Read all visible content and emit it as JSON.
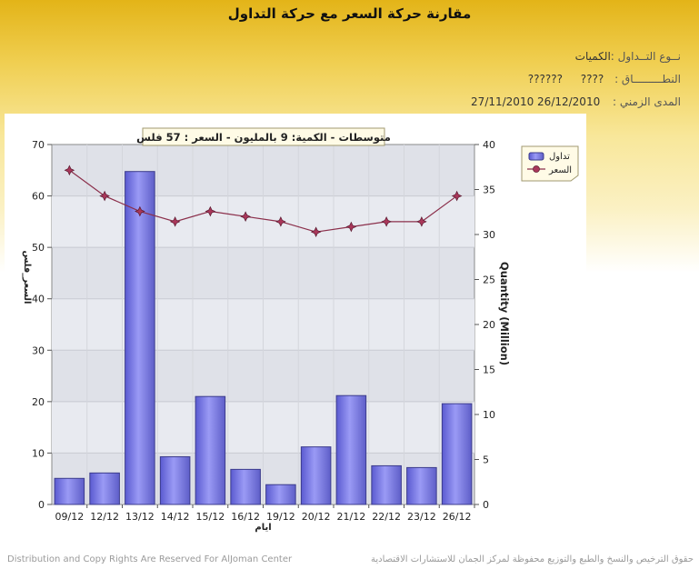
{
  "page": {
    "title": "مقارنة حركة السعر مع حركة التداول",
    "trade_type_label": "نــوع التــداول :",
    "trade_type_value": "الكميات",
    "sector_label": "النطـــــــــاق :",
    "sector_value1": "????",
    "sector_value2": "??????",
    "period_label": "المدى الزمني :",
    "period_value": "26/12/2010 27/11/2010",
    "footer_left": "Distribution and Copy Rights Are Reserved For AlJoman Center",
    "footer_right": "حقوق الترخيص والنسخ والطبع والتوزيع محفوظة لمركز الجمان للاستشارات الاقتصادية"
  },
  "colors": {
    "bar_fill": "#7b7bea",
    "bar_stroke": "#3c3c8c",
    "line": "#8b2f4b",
    "marker": "#a9375a",
    "plot_bg": "#dfe1e8"
  },
  "chart_data": {
    "type": "bar",
    "title": "متوسطات - الكمية: 9 بالمليون  - السعر : 57 فلس",
    "xlabel": "ايام",
    "ylabel_left": "السعر_فلس",
    "ylabel_right": "Quantity (Million)",
    "categories": [
      "09/12",
      "12/12",
      "13/12",
      "14/12",
      "15/12",
      "16/12",
      "19/12",
      "20/12",
      "21/12",
      "22/12",
      "23/12",
      "26/12"
    ],
    "left_axis": {
      "min": 0,
      "max": 70,
      "ticks": [
        0,
        10,
        20,
        30,
        40,
        50,
        60,
        70
      ]
    },
    "right_axis": {
      "min": 0,
      "max": 40,
      "ticks": [
        0,
        5,
        10,
        15,
        20,
        25,
        30,
        35,
        40
      ]
    },
    "legend_position": "top-right",
    "grid": true,
    "series": [
      {
        "name": "تداول",
        "kind": "bar",
        "axis": "right",
        "values": [
          2.9,
          3.5,
          37.0,
          5.3,
          12.0,
          3.9,
          2.2,
          6.4,
          12.1,
          4.3,
          4.1,
          11.2
        ]
      },
      {
        "name": "السعر",
        "kind": "line",
        "axis": "left",
        "values": [
          65,
          60,
          57,
          55,
          57,
          56,
          55,
          53,
          54,
          55,
          55,
          60
        ]
      }
    ]
  }
}
